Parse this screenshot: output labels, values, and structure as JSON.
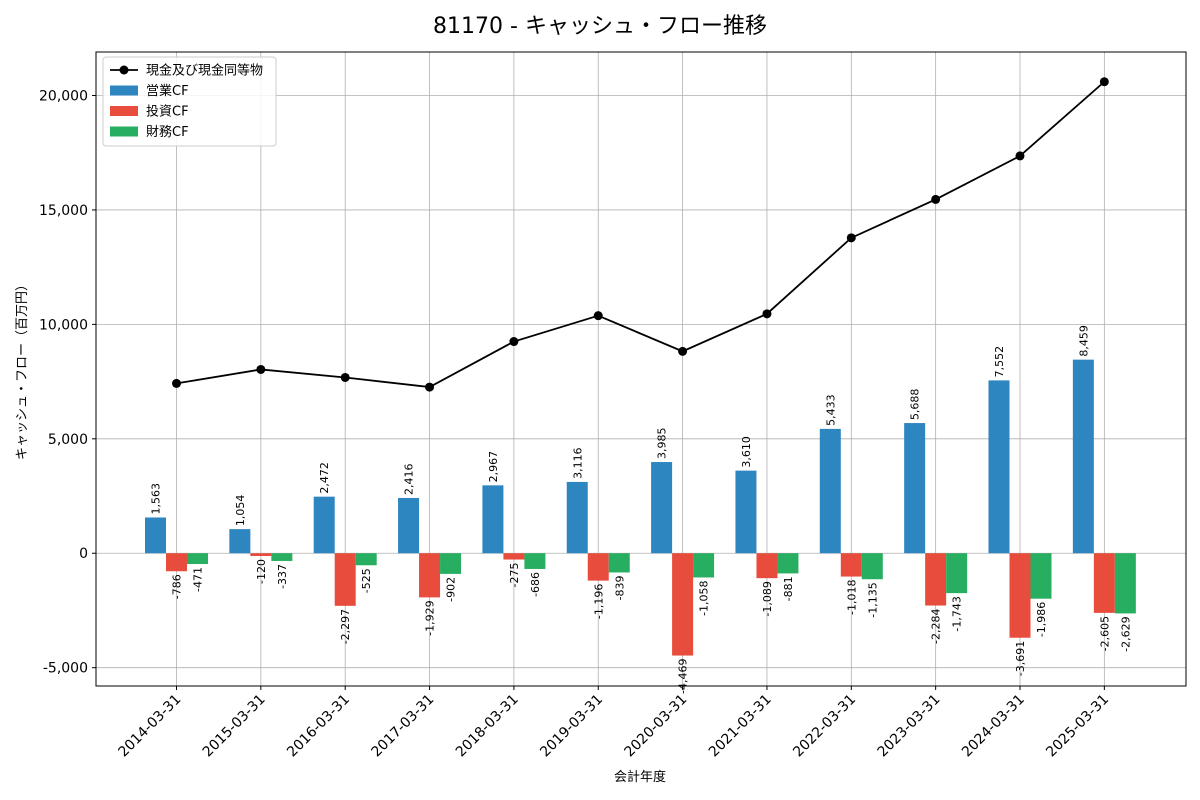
{
  "chart_data": {
    "type": "bar+line",
    "title": "81170 - キャッシュ・フロー推移",
    "xlabel": "会計年度",
    "ylabel": "キャッシュ・フロー（百万円）",
    "categories": [
      "2014-03-31",
      "2015-03-31",
      "2016-03-31",
      "2017-03-31",
      "2018-03-31",
      "2019-03-31",
      "2020-03-31",
      "2021-03-31",
      "2022-03-31",
      "2023-03-31",
      "2024-03-31",
      "2025-03-31"
    ],
    "ylim": [
      -5800,
      21900
    ],
    "yticks": [
      -5000,
      0,
      5000,
      10000,
      15000,
      20000
    ],
    "ytick_labels": [
      "-5,000",
      "0",
      "5,000",
      "10,000",
      "15,000",
      "20,000"
    ],
    "grid": true,
    "legend_position": "top-left",
    "bar_series": [
      {
        "name": "営業CF",
        "color": "#2e86c1",
        "values": [
          1563,
          1054,
          2472,
          2416,
          2967,
          3116,
          3985,
          3610,
          5433,
          5688,
          7552,
          8459
        ],
        "labels": [
          "1,563",
          "1,054",
          "2,472",
          "2,416",
          "2,967",
          "3,116",
          "3,985",
          "3,610",
          "5,433",
          "5,688",
          "7,552",
          "8,459"
        ]
      },
      {
        "name": "投資CF",
        "color": "#e74c3c",
        "values": [
          -786,
          -120,
          -2297,
          -1929,
          -275,
          -1196,
          -4469,
          -1089,
          -1018,
          -2284,
          -3691,
          -2605
        ],
        "labels": [
          "-786",
          "-120",
          "-2,297",
          "-1,929",
          "-275",
          "-1,196",
          "-4,469",
          "-1,089",
          "-1,018",
          "-2,284",
          "-3,691",
          "-2,605"
        ]
      },
      {
        "name": "財務CF",
        "color": "#27ae60",
        "values": [
          -471,
          -337,
          -525,
          -902,
          -686,
          -839,
          -1058,
          -881,
          -1135,
          -1743,
          -1986,
          -2629
        ],
        "labels": [
          "-471",
          "-337",
          "-525",
          "-902",
          "-686",
          "-839",
          "-1,058",
          "-881",
          "-1,135",
          "-1,743",
          "-1,986",
          "-2,629"
        ]
      }
    ],
    "line_series": {
      "name": "現金及び現金同等物",
      "color": "#000000",
      "values": [
        7420,
        8030,
        7680,
        7260,
        9250,
        10380,
        8820,
        10460,
        13780,
        15460,
        17360,
        20600
      ]
    },
    "legend_order": [
      "現金及び現金同等物",
      "営業CF",
      "投資CF",
      "財務CF"
    ]
  }
}
